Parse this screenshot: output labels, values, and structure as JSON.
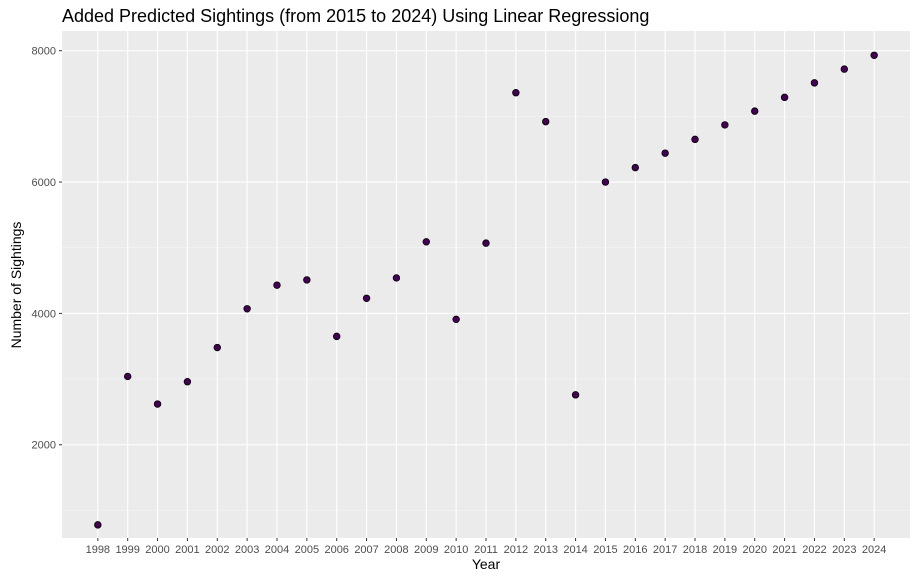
{
  "chart_data": {
    "type": "scatter",
    "title": "Added Predicted Sightings (from 2015 to 2024) Using Linear Regressiong",
    "xlabel": "Year",
    "ylabel": "Number of Sightings",
    "x": [
      1998,
      1999,
      2000,
      2001,
      2002,
      2003,
      2004,
      2005,
      2006,
      2007,
      2008,
      2009,
      2010,
      2011,
      2012,
      2013,
      2014,
      2015,
      2016,
      2017,
      2018,
      2019,
      2020,
      2021,
      2022,
      2023,
      2024
    ],
    "x_tick_labels": [
      "1998",
      "1999",
      "2000",
      "2001",
      "2002",
      "2003",
      "2004",
      "2005",
      "2006",
      "2007",
      "2008",
      "2009",
      "2010",
      "2011",
      "2012",
      "2013",
      "2014",
      "2015",
      "2016",
      "2017",
      "2018",
      "2019",
      "2020",
      "2021",
      "2022",
      "2023",
      "2024"
    ],
    "y": [
      780,
      3040,
      2620,
      2960,
      3480,
      4070,
      4430,
      4510,
      3650,
      4230,
      4540,
      5090,
      3910,
      5070,
      7360,
      6920,
      2760,
      6000,
      6220,
      6440,
      6650,
      6870,
      7080,
      7290,
      7510,
      7720,
      7930
    ],
    "y_ticks": [
      2000,
      4000,
      6000,
      8000
    ],
    "y_tick_labels": [
      "2000",
      "4000",
      "6000",
      "8000"
    ],
    "ylim": [
      580,
      8300
    ],
    "grid": true,
    "colors": {
      "point_fill": "#440154",
      "point_stroke": "#000000",
      "panel": "#ebebeb",
      "grid_major": "#ffffff",
      "axis_text": "#4d4d4d"
    }
  }
}
